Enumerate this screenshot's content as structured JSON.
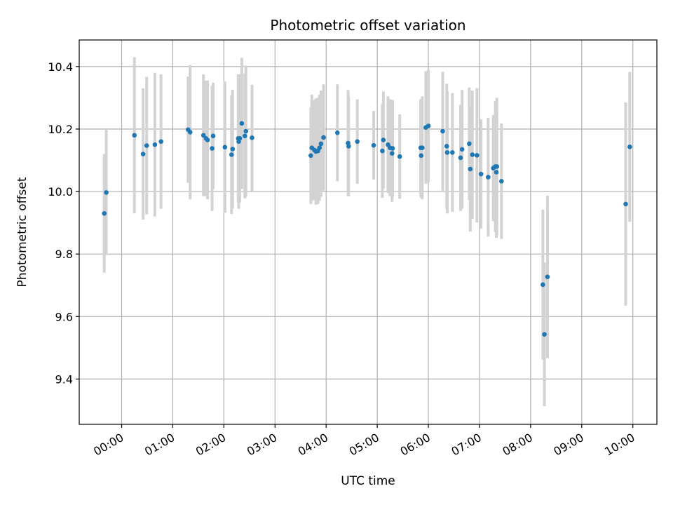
{
  "chart_data": {
    "type": "scatter",
    "title": "Photometric offset variation",
    "xlabel": "UTC time",
    "ylabel": "Photometric offset",
    "xlim": [
      -0.83,
      10.47
    ],
    "ylim": [
      9.255,
      10.485
    ],
    "xticks": [
      0,
      1,
      2,
      3,
      4,
      5,
      6,
      7,
      8,
      9,
      10
    ],
    "xtick_labels": [
      "00:00",
      "01:00",
      "02:00",
      "03:00",
      "04:00",
      "05:00",
      "06:00",
      "07:00",
      "08:00",
      "09:00",
      "10:00"
    ],
    "yticks": [
      9.4,
      9.6,
      9.8,
      10.0,
      10.2,
      10.4
    ],
    "ytick_labels": [
      "9.4",
      "9.6",
      "9.8",
      "10.0",
      "10.2",
      "10.4"
    ],
    "grid": true,
    "marker_color": "#1f77b4",
    "errorbar_color": "#d3d3d3",
    "series": [
      {
        "name": "offset",
        "x_hours": [
          -0.34,
          -0.3,
          0.25,
          0.42,
          0.49,
          0.65,
          0.77,
          1.3,
          1.34,
          1.6,
          1.65,
          1.68,
          1.77,
          1.79,
          2.02,
          2.15,
          2.17,
          2.28,
          2.29,
          2.31,
          2.35,
          2.41,
          2.43,
          2.55,
          3.7,
          3.72,
          3.77,
          3.8,
          3.84,
          3.87,
          3.9,
          3.95,
          4.22,
          4.43,
          4.44,
          4.61,
          4.93,
          5.1,
          5.12,
          5.21,
          5.25,
          5.29,
          5.3,
          5.44,
          5.85,
          5.86,
          5.88,
          5.95,
          6.0,
          6.28,
          6.36,
          6.37,
          6.47,
          6.63,
          6.66,
          6.8,
          6.82,
          6.86,
          6.95,
          7.03,
          7.17,
          7.27,
          7.31,
          7.33,
          7.34,
          7.43,
          8.24,
          8.27,
          8.33,
          9.86,
          9.94
        ],
        "y": [
          9.93,
          9.997,
          10.18,
          10.12,
          10.147,
          10.15,
          10.16,
          10.198,
          10.19,
          10.18,
          10.17,
          10.165,
          10.138,
          10.178,
          10.142,
          10.118,
          10.136,
          10.17,
          10.16,
          10.17,
          10.218,
          10.178,
          10.193,
          10.172,
          10.115,
          10.14,
          10.133,
          10.128,
          10.13,
          10.14,
          10.153,
          10.173,
          10.188,
          10.155,
          10.145,
          10.16,
          10.148,
          10.13,
          10.165,
          10.15,
          10.14,
          10.122,
          10.138,
          10.112,
          10.14,
          10.115,
          10.14,
          10.205,
          10.21,
          10.193,
          10.145,
          10.125,
          10.125,
          10.108,
          10.135,
          10.153,
          10.072,
          10.118,
          10.116,
          10.056,
          10.046,
          10.075,
          10.08,
          10.062,
          10.08,
          10.033,
          9.702,
          9.543,
          9.727,
          9.96,
          10.143
        ],
        "y_err": [
          0.19,
          0.2,
          0.25,
          0.21,
          0.22,
          0.23,
          0.215,
          0.17,
          0.215,
          0.195,
          0.185,
          0.19,
          0.2,
          0.17,
          0.21,
          0.19,
          0.19,
          0.205,
          0.215,
          0.205,
          0.21,
          0.2,
          0.21,
          0.17,
          0.155,
          0.17,
          0.16,
          0.17,
          0.17,
          0.17,
          0.17,
          0.17,
          0.155,
          0.17,
          0.16,
          0.135,
          0.11,
          0.15,
          0.155,
          0.155,
          0.155,
          0.155,
          0.155,
          0.135,
          0.155,
          0.135,
          0.165,
          0.18,
          0.18,
          0.19,
          0.2,
          0.195,
          0.19,
          0.17,
          0.19,
          0.18,
          0.2,
          0.205,
          0.215,
          0.175,
          0.19,
          0.17,
          0.21,
          0.21,
          0.22,
          0.185,
          0.24,
          0.23,
          0.26,
          0.325,
          0.24
        ]
      }
    ]
  }
}
